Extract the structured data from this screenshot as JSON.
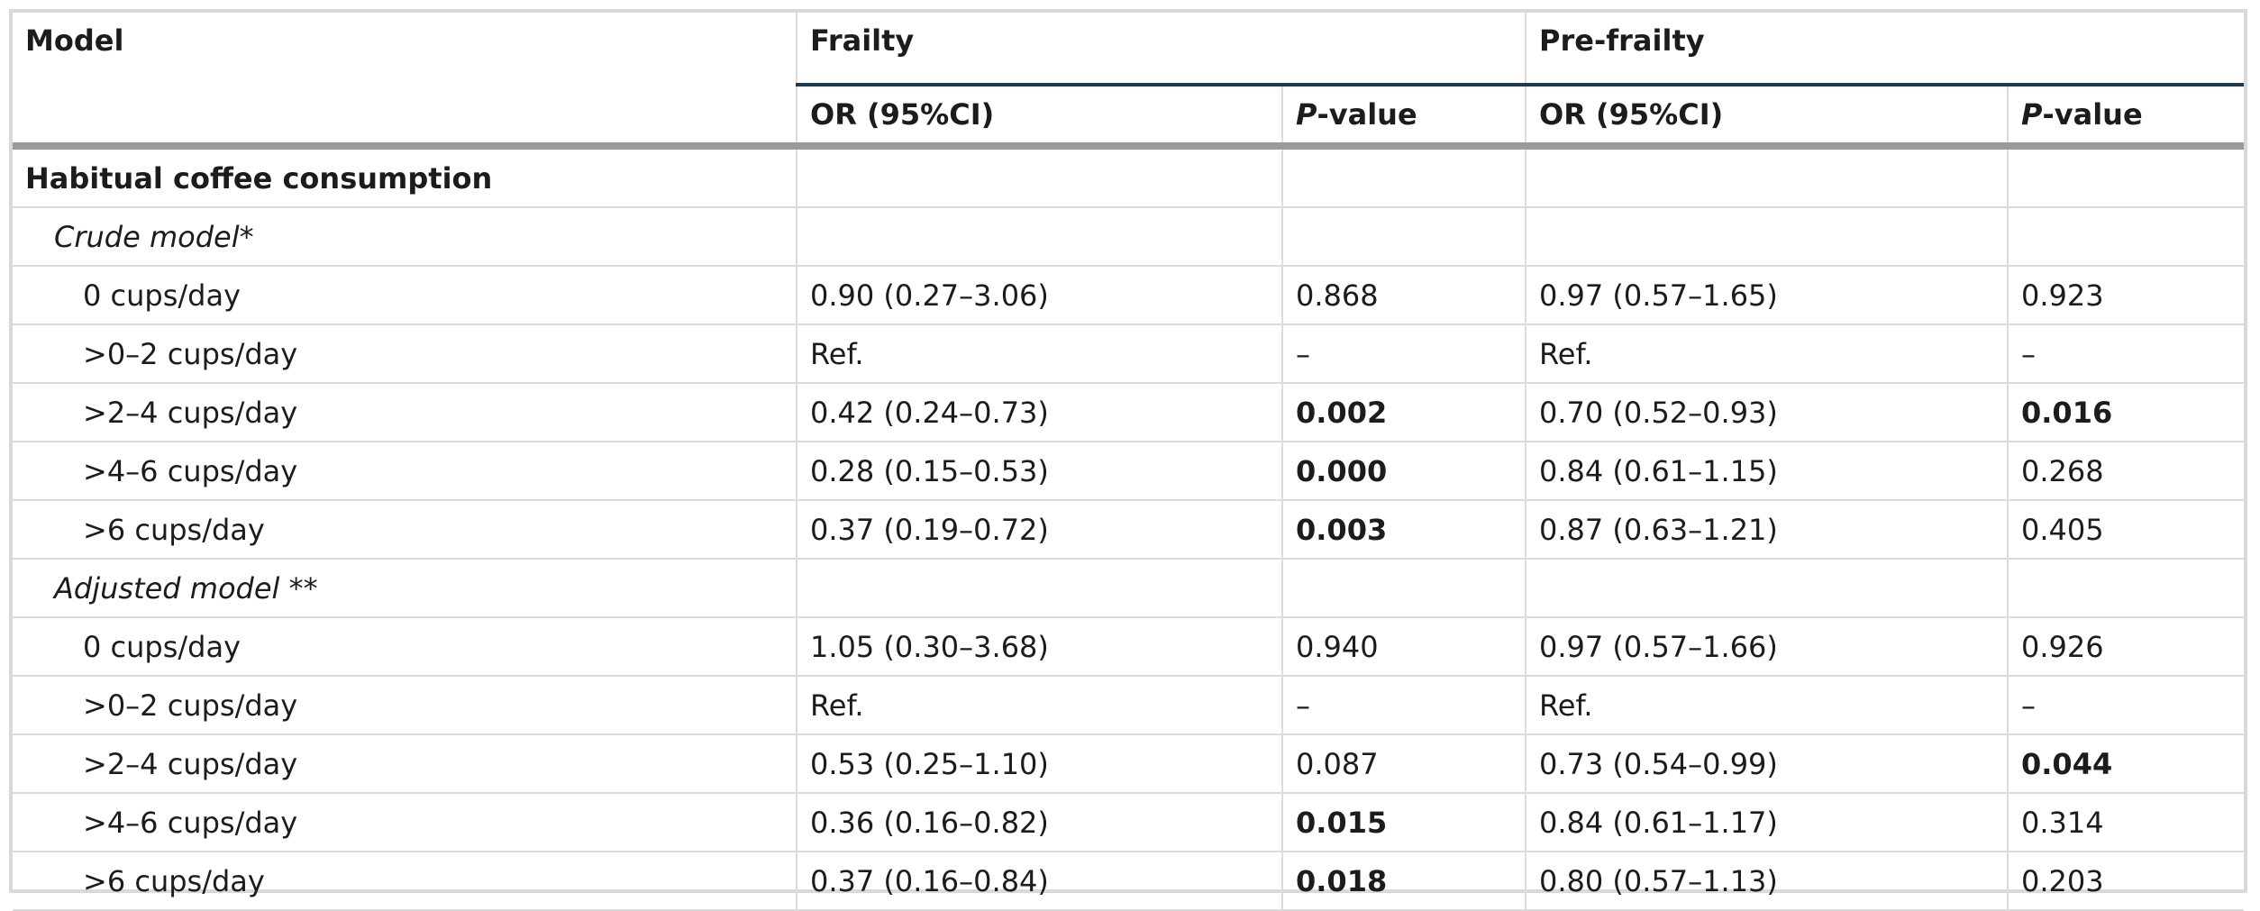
{
  "header": {
    "model": "Model",
    "frailty": "Frailty",
    "pre_frailty": "Pre-frailty",
    "or_ci": "OR (95%CI)",
    "p_prefix": "P",
    "p_suffix": "-value"
  },
  "section_title": "Habitual coffee consumption",
  "crude": {
    "label": "Crude model*",
    "rows": [
      {
        "cat": "0 cups/day",
        "f_or": "0.90 (0.27–3.06)",
        "f_p": "0.868",
        "pf_or": "0.97 (0.57–1.65)",
        "pf_p": "0.923"
      },
      {
        "cat": ">0–2 cups/day",
        "f_or": "Ref.",
        "f_p": "–",
        "pf_or": "Ref.",
        "pf_p": "–"
      },
      {
        "cat": ">2–4 cups/day",
        "f_or": "0.42 (0.24–0.73)",
        "f_p": "0.002",
        "pf_or": "0.70 (0.52–0.93)",
        "pf_p": "0.016"
      },
      {
        "cat": ">4–6 cups/day",
        "f_or": "0.28 (0.15–0.53)",
        "f_p": "0.000",
        "pf_or": "0.84 (0.61–1.15)",
        "pf_p": "0.268"
      },
      {
        "cat": ">6 cups/day",
        "f_or": "0.37 (0.19–0.72)",
        "f_p": "0.003",
        "pf_or": "0.87 (0.63–1.21)",
        "pf_p": "0.405"
      }
    ]
  },
  "adjusted": {
    "label": "Adjusted model **",
    "rows": [
      {
        "cat": "0 cups/day",
        "f_or": "1.05 (0.30–3.68)",
        "f_p": "0.940",
        "pf_or": "0.97 (0.57–1.66)",
        "pf_p": "0.926"
      },
      {
        "cat": ">0–2 cups/day",
        "f_or": "Ref.",
        "f_p": "–",
        "pf_or": "Ref.",
        "pf_p": "–"
      },
      {
        "cat": ">2–4 cups/day",
        "f_or": "0.53 (0.25–1.10)",
        "f_p": "0.087",
        "pf_or": "0.73 (0.54–0.99)",
        "pf_p": "0.044"
      },
      {
        "cat": ">4–6 cups/day",
        "f_or": "0.36 (0.16–0.82)",
        "f_p": "0.015",
        "pf_or": "0.84 (0.61–1.17)",
        "pf_p": "0.314"
      },
      {
        "cat": ">6 cups/day",
        "f_or": "0.37 (0.16–0.84)",
        "f_p": "0.018",
        "pf_or": "0.80 (0.57–1.13)",
        "pf_p": "0.203"
      }
    ]
  }
}
